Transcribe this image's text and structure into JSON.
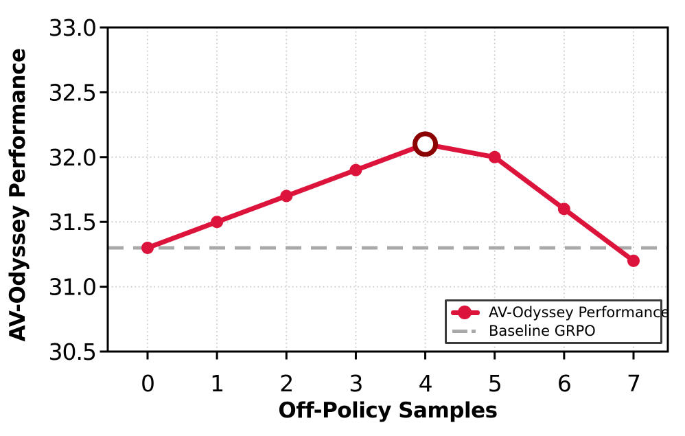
{
  "chart_data": {
    "type": "line",
    "xlabel": "Off-Policy Samples",
    "ylabel": "AV-Odyssey Performance",
    "x": [
      0,
      1,
      2,
      3,
      4,
      5,
      6,
      7
    ],
    "xtick_labels": [
      "0",
      "1",
      "2",
      "3",
      "4",
      "5",
      "6",
      "7"
    ],
    "yticks": [
      30.5,
      31.0,
      31.5,
      32.0,
      32.5,
      33.0
    ],
    "ytick_labels": [
      "30.5",
      "31.0",
      "31.5",
      "32.0",
      "32.5",
      "33.0"
    ],
    "ylim": [
      30.5,
      33.0
    ],
    "grid": true,
    "grid_style": "dotted",
    "legend_position": "lower right",
    "series": [
      {
        "name": "AV-Odyssey Performance",
        "type": "line",
        "values": [
          31.3,
          31.5,
          31.7,
          31.9,
          32.1,
          32.0,
          31.6,
          31.2
        ],
        "color": "#DC143C",
        "marker": "circle",
        "style": "solid"
      },
      {
        "name": "Baseline GRPO",
        "type": "hline",
        "value": 31.3,
        "color": "#A9A9A9",
        "style": "dashed"
      }
    ],
    "highlight": {
      "x": 4,
      "value": 32.1,
      "ring_color": "#8B0000",
      "fill": "#ffffff"
    }
  },
  "colors": {
    "line": "#DC143C",
    "highlight_ring": "#8B0000",
    "baseline": "#A9A9A9",
    "grid": "#cbcbcb",
    "axis": "#000000",
    "legend_border": "#3b3b3b",
    "background": "#ffffff"
  }
}
